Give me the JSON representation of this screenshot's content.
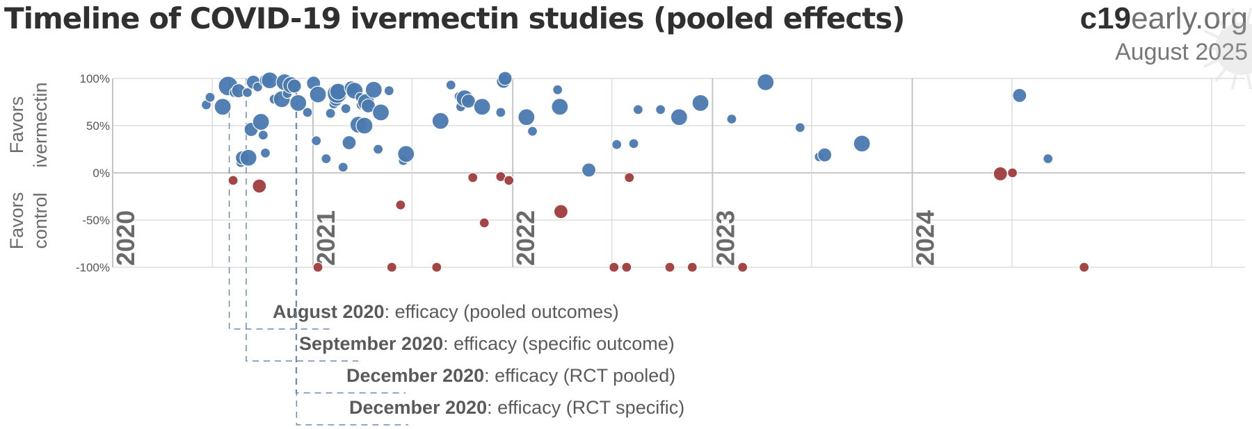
{
  "header": {
    "title": "Timeline of COVID-19 ivermectin studies (pooled effects)",
    "brand_bold": "c19",
    "brand_rest": "early.org",
    "date": "August 2025"
  },
  "chart_data": {
    "type": "scatter",
    "title": "Timeline of COVID-19 ivermectin studies (pooled effects)",
    "xlabel": "",
    "ylabel_top": [
      "Favors",
      "ivermectin"
    ],
    "ylabel_bottom": [
      "Favors",
      "control"
    ],
    "ylim": [
      -100,
      100
    ],
    "xlim": [
      "2020-01-01",
      "2025-08-31"
    ],
    "yticks": [
      "100%",
      "50%",
      "0%",
      "-50%",
      "-100%"
    ],
    "ytick_values": [
      100,
      50,
      0,
      -50,
      -100
    ],
    "year_labels": [
      "2020",
      "2021",
      "2022",
      "2023",
      "2024"
    ],
    "year_dates": [
      "2020-01-01",
      "2021-01-01",
      "2022-01-01",
      "2023-01-01",
      "2024-01-01"
    ],
    "grid": true,
    "colors": {
      "positive": "#4a79b0",
      "negative": "#a13b3b",
      "grid": "#dddddd",
      "zero": "#c8c8c8",
      "milestone": "#6b8bb5"
    },
    "series": [
      {
        "points": [
          {
            "x": "2020-06-20",
            "y": 72,
            "s": 2
          },
          {
            "x": "2020-06-27",
            "y": 80,
            "s": 2
          },
          {
            "x": "2020-07-20",
            "y": 70,
            "s": 4
          },
          {
            "x": "2020-07-30",
            "y": 92,
            "s": 5
          },
          {
            "x": "2020-08-10",
            "y": 85,
            "s": 2
          },
          {
            "x": "2020-08-18",
            "y": 87,
            "s": 3
          },
          {
            "x": "2020-08-22",
            "y": 11,
            "s": 2
          },
          {
            "x": "2020-08-25",
            "y": 16,
            "s": 3
          },
          {
            "x": "2020-09-03",
            "y": 85,
            "s": 2
          },
          {
            "x": "2020-09-05",
            "y": 16,
            "s": 4
          },
          {
            "x": "2020-09-10",
            "y": 46,
            "s": 3
          },
          {
            "x": "2020-09-14",
            "y": 96,
            "s": 3
          },
          {
            "x": "2020-09-22",
            "y": 91,
            "s": 2
          },
          {
            "x": "2020-09-28",
            "y": 54,
            "s": 4
          },
          {
            "x": "2020-10-02",
            "y": 40,
            "s": 2
          },
          {
            "x": "2020-10-06",
            "y": 21,
            "s": 2
          },
          {
            "x": "2020-10-08",
            "y": 98,
            "s": 3
          },
          {
            "x": "2020-10-14",
            "y": 98,
            "s": 4
          },
          {
            "x": "2020-10-22",
            "y": 78,
            "s": 2
          },
          {
            "x": "2020-11-05",
            "y": 78,
            "s": 4
          },
          {
            "x": "2020-11-10",
            "y": 96,
            "s": 4
          },
          {
            "x": "2020-11-15",
            "y": 84,
            "s": 2
          },
          {
            "x": "2020-11-22",
            "y": 93,
            "s": 4
          },
          {
            "x": "2020-11-28",
            "y": 92,
            "s": 3
          },
          {
            "x": "2020-12-05",
            "y": 74,
            "s": 4
          },
          {
            "x": "2020-12-22",
            "y": 64,
            "s": 2
          },
          {
            "x": "2021-01-02",
            "y": 95,
            "s": 3
          },
          {
            "x": "2021-01-07",
            "y": 34,
            "s": 2
          },
          {
            "x": "2021-01-10",
            "y": 83,
            "s": 4
          },
          {
            "x": "2021-01-25",
            "y": 15,
            "s": 2
          },
          {
            "x": "2021-02-02",
            "y": 63,
            "s": 2
          },
          {
            "x": "2021-02-08",
            "y": 73,
            "s": 2
          },
          {
            "x": "2021-02-12",
            "y": 78,
            "s": 3
          },
          {
            "x": "2021-02-14",
            "y": 84,
            "s": 5
          },
          {
            "x": "2021-02-16",
            "y": 86,
            "s": 4
          },
          {
            "x": "2021-02-25",
            "y": 6,
            "s": 2
          },
          {
            "x": "2021-03-02",
            "y": 68,
            "s": 2
          },
          {
            "x": "2021-03-08",
            "y": 32,
            "s": 3
          },
          {
            "x": "2021-03-12",
            "y": 90,
            "s": 3
          },
          {
            "x": "2021-03-18",
            "y": 87,
            "s": 4
          },
          {
            "x": "2021-03-25",
            "y": 51,
            "s": 4
          },
          {
            "x": "2021-03-28",
            "y": 80,
            "s": 2
          },
          {
            "x": "2021-03-30",
            "y": 72,
            "s": 2
          },
          {
            "x": "2021-04-05",
            "y": 50,
            "s": 4
          },
          {
            "x": "2021-04-08",
            "y": 75,
            "s": 4
          },
          {
            "x": "2021-04-12",
            "y": 71,
            "s": 3
          },
          {
            "x": "2021-04-22",
            "y": 88,
            "s": 4
          },
          {
            "x": "2021-04-30",
            "y": 25,
            "s": 2
          },
          {
            "x": "2021-05-05",
            "y": 64,
            "s": 4
          },
          {
            "x": "2021-05-20",
            "y": 87,
            "s": 2
          },
          {
            "x": "2021-06-15",
            "y": 13,
            "s": 2
          },
          {
            "x": "2021-06-20",
            "y": 20,
            "s": 4
          },
          {
            "x": "2021-08-22",
            "y": 55,
            "s": 4
          },
          {
            "x": "2021-09-10",
            "y": 93,
            "s": 2
          },
          {
            "x": "2021-09-25",
            "y": 81,
            "s": 2
          },
          {
            "x": "2021-09-28",
            "y": 70,
            "s": 2
          },
          {
            "x": "2021-10-05",
            "y": 79,
            "s": 4
          },
          {
            "x": "2021-10-12",
            "y": 76,
            "s": 3
          },
          {
            "x": "2021-11-06",
            "y": 70,
            "s": 4
          },
          {
            "x": "2021-12-10",
            "y": 64,
            "s": 2
          },
          {
            "x": "2021-12-15",
            "y": 97,
            "s": 3
          },
          {
            "x": "2021-12-18",
            "y": 100,
            "s": 3
          },
          {
            "x": "2022-01-26",
            "y": 59,
            "s": 4
          },
          {
            "x": "2022-02-06",
            "y": 44,
            "s": 2
          },
          {
            "x": "2022-03-24",
            "y": 88,
            "s": 2
          },
          {
            "x": "2022-03-28",
            "y": 70,
            "s": 4
          },
          {
            "x": "2022-05-20",
            "y": 3,
            "s": 3
          },
          {
            "x": "2022-07-10",
            "y": 30,
            "s": 2
          },
          {
            "x": "2022-08-10",
            "y": 31,
            "s": 2
          },
          {
            "x": "2022-08-18",
            "y": 67,
            "s": 2
          },
          {
            "x": "2022-09-28",
            "y": 67,
            "s": 2
          },
          {
            "x": "2022-11-01",
            "y": 59,
            "s": 4
          },
          {
            "x": "2022-12-10",
            "y": 74,
            "s": 4
          },
          {
            "x": "2023-02-05",
            "y": 57,
            "s": 2
          },
          {
            "x": "2023-04-08",
            "y": 96,
            "s": 4
          },
          {
            "x": "2023-06-10",
            "y": 48,
            "s": 2
          },
          {
            "x": "2023-07-15",
            "y": 17,
            "s": 2
          },
          {
            "x": "2023-07-25",
            "y": 19,
            "s": 3
          },
          {
            "x": "2023-10-01",
            "y": 31,
            "s": 4
          },
          {
            "x": "2024-07-15",
            "y": 82,
            "s": 3
          },
          {
            "x": "2024-09-05",
            "y": 15,
            "s": 2
          }
        ]
      },
      {
        "points": [
          {
            "x": "2020-08-08",
            "y": -8,
            "s": 2
          },
          {
            "x": "2020-09-25",
            "y": -14,
            "s": 3
          },
          {
            "x": "2021-01-10",
            "y": -100,
            "s": 2
          },
          {
            "x": "2021-05-25",
            "y": -100,
            "s": 2
          },
          {
            "x": "2021-06-10",
            "y": -34,
            "s": 2
          },
          {
            "x": "2021-08-15",
            "y": -100,
            "s": 2
          },
          {
            "x": "2021-10-20",
            "y": -5,
            "s": 2
          },
          {
            "x": "2021-11-10",
            "y": -53,
            "s": 2
          },
          {
            "x": "2021-12-10",
            "y": -4,
            "s": 2
          },
          {
            "x": "2021-12-25",
            "y": -8,
            "s": 2
          },
          {
            "x": "2022-03-30",
            "y": -41,
            "s": 3
          },
          {
            "x": "2022-07-05",
            "y": -100,
            "s": 2
          },
          {
            "x": "2022-07-28",
            "y": -100,
            "s": 2
          },
          {
            "x": "2022-08-02",
            "y": -5,
            "s": 2
          },
          {
            "x": "2022-10-15",
            "y": -100,
            "s": 2
          },
          {
            "x": "2022-11-25",
            "y": -100,
            "s": 2
          },
          {
            "x": "2023-02-25",
            "y": -100,
            "s": 2
          },
          {
            "x": "2024-06-10",
            "y": -1,
            "s": 3
          },
          {
            "x": "2024-07-02",
            "y": 0,
            "s": 2
          },
          {
            "x": "2024-11-10",
            "y": -100,
            "s": 2
          }
        ]
      }
    ],
    "milestones": [
      {
        "date": "2020-08-01",
        "date_label": "August 2020",
        "text": ": efficacy (pooled outcomes)"
      },
      {
        "date": "2020-09-01",
        "date_label": "September 2020",
        "text": ": efficacy (specific outcome)"
      },
      {
        "date": "2020-12-01",
        "date_label": "December 2020",
        "text": ": efficacy (RCT pooled)"
      },
      {
        "date": "2020-12-02",
        "date_label": "December 2020",
        "text": ": efficacy (RCT specific)"
      }
    ]
  }
}
